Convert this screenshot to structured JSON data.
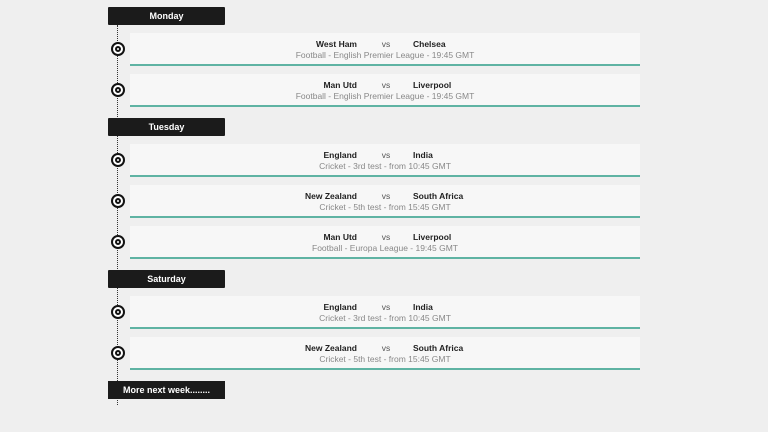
{
  "accent_color": "#5fb3a3",
  "vs_label": "vs",
  "days": [
    {
      "label": "Monday",
      "events": [
        {
          "home": "West Ham",
          "away": "Chelsea",
          "details": "Football - English Premier League - 19:45 GMT"
        },
        {
          "home": "Man Utd",
          "away": "Liverpool",
          "details": "Football - English Premier League - 19:45 GMT"
        }
      ]
    },
    {
      "label": "Tuesday",
      "events": [
        {
          "home": "England",
          "away": "India",
          "details": "Cricket - 3rd test - from 10:45 GMT"
        },
        {
          "home": "New Zealand",
          "away": "South Africa",
          "details": "Cricket - 5th test - from 15:45 GMT"
        },
        {
          "home": "Man Utd",
          "away": "Liverpool",
          "details": "Football - Europa League - 19:45 GMT"
        }
      ]
    },
    {
      "label": "Saturday",
      "events": [
        {
          "home": "England",
          "away": "India",
          "details": "Cricket - 3rd test - from 10:45 GMT"
        },
        {
          "home": "New Zealand",
          "away": "South Africa",
          "details": "Cricket - 5th test - from 15:45 GMT"
        }
      ]
    }
  ],
  "more_label": "More next week........"
}
